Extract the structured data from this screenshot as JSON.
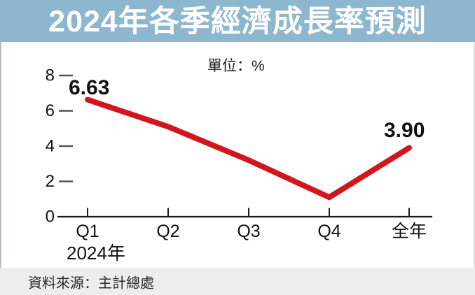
{
  "title": "2024年各季經濟成長率預測",
  "chart_data": {
    "type": "line",
    "title": "2024年各季經濟成長率預測",
    "unit_label": "單位：%",
    "categories": [
      "Q1",
      "Q2",
      "Q3",
      "Q4",
      "全年"
    ],
    "values": [
      6.63,
      5.1,
      3.2,
      1.1,
      3.9
    ],
    "labeled_points": {
      "Q1": "6.63",
      "全年": "3.90"
    },
    "y_ticks": [
      "8",
      "6",
      "4",
      "2",
      "0"
    ],
    "ylim": [
      0,
      8
    ],
    "xlabel": "2024年",
    "ylabel": "",
    "grid": "off",
    "legend": "none",
    "line_color": "#d2161c"
  },
  "source": {
    "text": "資料來源：主計總處"
  },
  "colors": {
    "title_bg": "#8cb7ce",
    "title_text": "#ffffff",
    "panel_bg": "#ffffff",
    "source_bg": "#ededed",
    "line": "#d2161c",
    "axis": "#1a1a1a",
    "tick_dash": "#555555"
  }
}
